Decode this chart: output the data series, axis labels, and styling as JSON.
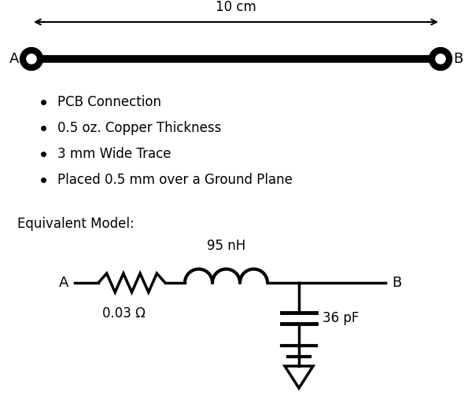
{
  "dim_label": "10 cm",
  "node_A": "A",
  "node_B": "B",
  "bullet_points": [
    "PCB Connection",
    "0.5 oz. Copper Thickness",
    "3 mm Wide Trace",
    "Placed 0.5 mm over a Ground Plane"
  ],
  "equiv_label": "Equivalent Model:",
  "resistor_label": "0.03 Ω",
  "inductor_label": "95 nH",
  "capacitor_label": "36 pF",
  "bg_color": "#ffffff",
  "fg_color": "#000000",
  "trace_lw": 7.0,
  "circ_lw": 5.0,
  "lw": 2.5,
  "font_size": 12
}
